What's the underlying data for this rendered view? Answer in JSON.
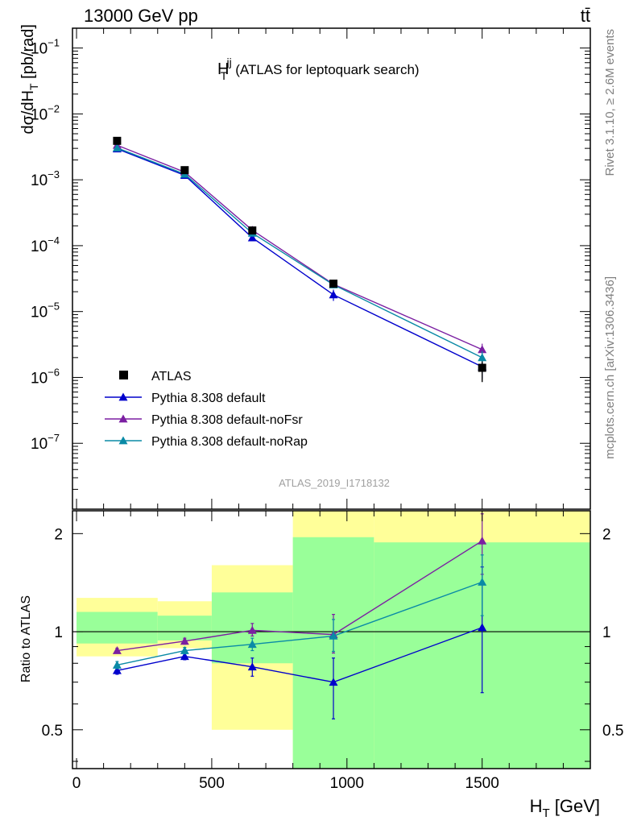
{
  "header": {
    "energy_label": "13000 GeV pp",
    "process_label": "tt̄"
  },
  "side_labels": {
    "rivet": "Rivet 3.1.10, ≥ 2.6M events",
    "source": "mcplots.cern.ch [arXiv:1306.3436]"
  },
  "analysis_id": "ATLAS_2019_I1718132",
  "chart_data": [
    {
      "type": "scatter",
      "title": "H_T^jj (ATLAS for leptoquark search)",
      "title_parts": {
        "main": "H",
        "sup": "jj",
        "sub": "T",
        "rest": "(ATLAS for leptoquark search)"
      },
      "ylabel": "dσ/dH_T [pb/rad]",
      "ylabel_parts": {
        "pre": "dσ/dH",
        "sub": "T",
        "post": " [pb/rad]"
      },
      "yscale": "log",
      "ylim": [
        1e-08,
        0.2
      ],
      "xlim": [
        -15,
        1900
      ],
      "y_ticks": [
        1e-07,
        1e-06,
        1e-05,
        0.0001,
        0.001,
        0.01,
        0.1
      ],
      "y_tick_labels": [
        {
          "base": "10",
          "exp": "−7"
        },
        {
          "base": "10",
          "exp": "−6"
        },
        {
          "base": "10",
          "exp": "−5"
        },
        {
          "base": "10",
          "exp": "−4"
        },
        {
          "base": "10",
          "exp": "−3"
        },
        {
          "base": "10",
          "exp": "−2"
        },
        {
          "base": "10",
          "exp": "−1"
        }
      ],
      "legend_position": "lower-left",
      "reference": {
        "name": "ATLAS",
        "color": "#000000",
        "marker": "square",
        "x": [
          150,
          400,
          650,
          950,
          1500
        ],
        "y": [
          0.0039,
          0.0014,
          0.00017,
          2.65e-05,
          1.4e-06
        ],
        "yerr_low": [
          0.00025,
          7e-05,
          1.2e-06,
          1.5e-06,
          5.5e-07
        ],
        "yerr_high": [
          0.00025,
          7e-05,
          1.2e-06,
          1.5e-06,
          3.5e-07
        ]
      },
      "series": [
        {
          "name": "Pythia 8.308 default",
          "color": "#0000cc",
          "marker": "triangle",
          "x": [
            150,
            400,
            650,
            950,
            1500
          ],
          "y": [
            0.00295,
            0.00117,
            0.000132,
            1.8e-05,
            1.45e-06
          ],
          "yerr_low": [
            5e-05,
            3e-05,
            1e-05,
            3.5e-06,
            5e-07
          ],
          "yerr_high": [
            5e-05,
            3e-05,
            1e-05,
            3.5e-06,
            5e-07
          ]
        },
        {
          "name": "Pythia 8.308 default-noFsr",
          "color": "#7b1fa2",
          "marker": "triangle",
          "x": [
            150,
            400,
            650,
            950,
            1500
          ],
          "y": [
            0.00335,
            0.00131,
            0.000172,
            2.6e-05,
            2.65e-06
          ],
          "yerr_low": [
            5e-05,
            3e-05,
            1e-05,
            3e-06,
            6e-07
          ],
          "yerr_high": [
            5e-05,
            3e-05,
            1e-05,
            3e-06,
            6e-07
          ]
        },
        {
          "name": "Pythia 8.308 default-noRap",
          "color": "#0a8aa6",
          "marker": "triangle",
          "x": [
            150,
            400,
            650,
            950,
            1500
          ],
          "y": [
            0.00305,
            0.00122,
            0.000155,
            2.55e-05,
            2e-06
          ],
          "yerr_low": [
            5e-05,
            3e-05,
            1e-05,
            3e-06,
            5e-07
          ],
          "yerr_high": [
            5e-05,
            3e-05,
            1e-05,
            3e-06,
            5e-07
          ]
        }
      ]
    },
    {
      "type": "scatter",
      "ylabel": "Ratio to ATLAS",
      "xlabel": "H_T [GeV]",
      "xlabel_parts": {
        "pre": "H",
        "sub": "T",
        "post": " [GeV]"
      },
      "yscale": "log",
      "ylim": [
        0.38,
        2.35
      ],
      "xlim": [
        -15,
        1900
      ],
      "x_ticks": [
        0,
        500,
        1000,
        1500
      ],
      "x_tick_labels": [
        "0",
        "500",
        "1000",
        "1500"
      ],
      "y_ticks": [
        0.5,
        1,
        2
      ],
      "y_tick_labels": [
        "0.5",
        "1",
        "2"
      ],
      "reference_line": 1,
      "bands": [
        {
          "x0": 0,
          "x1": 300,
          "yellow": [
            0.84,
            1.27
          ],
          "green": [
            0.92,
            1.15
          ]
        },
        {
          "x0": 300,
          "x1": 500,
          "yellow": [
            0.89,
            1.24
          ],
          "green": [
            0.94,
            1.12
          ]
        },
        {
          "x0": 500,
          "x1": 800,
          "yellow": [
            0.5,
            1.6
          ],
          "green": [
            0.8,
            1.32
          ]
        },
        {
          "x0": 800,
          "x1": 1100,
          "yellow": [
            0.38,
            2.35
          ],
          "green": [
            0.38,
            1.95
          ]
        },
        {
          "x0": 1100,
          "x1": 1900,
          "yellow": [
            0.38,
            2.35
          ],
          "green": [
            0.38,
            1.88
          ]
        }
      ],
      "series": [
        {
          "name": "Pythia 8.308 default",
          "color": "#0000cc",
          "x": [
            150,
            400,
            650,
            950,
            1500
          ],
          "y": [
            0.76,
            0.84,
            0.78,
            0.7,
            1.03
          ],
          "yerr_low": [
            0.02,
            0.02,
            0.05,
            0.16,
            0.38
          ],
          "yerr_high": [
            0.02,
            0.02,
            0.05,
            0.13,
            0.55
          ]
        },
        {
          "name": "Pythia 8.308 default-noFsr",
          "color": "#7b1fa2",
          "x": [
            150,
            400,
            650,
            950,
            1500
          ],
          "y": [
            0.875,
            0.935,
            1.01,
            0.98,
            1.9
          ],
          "yerr_low": [
            0.015,
            0.02,
            0.04,
            0.12,
            0.4
          ],
          "yerr_high": [
            0.015,
            0.02,
            0.05,
            0.15,
            0.4
          ]
        },
        {
          "name": "Pythia 8.308 default-noRap",
          "color": "#0a8aa6",
          "x": [
            150,
            400,
            650,
            950,
            1500
          ],
          "y": [
            0.79,
            0.875,
            0.915,
            0.97,
            1.42
          ],
          "yerr_low": [
            0.02,
            0.02,
            0.04,
            0.1,
            0.3
          ],
          "yerr_high": [
            0.02,
            0.02,
            0.04,
            0.12,
            0.3
          ]
        }
      ]
    }
  ]
}
